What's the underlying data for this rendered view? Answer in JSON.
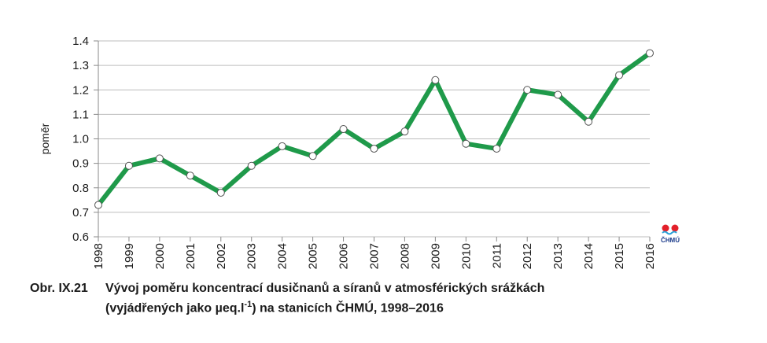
{
  "chart_data": {
    "type": "line",
    "x": [
      "1998",
      "1999",
      "2000",
      "2001",
      "2002",
      "2003",
      "2004",
      "2005",
      "2006",
      "2007",
      "2008",
      "2009",
      "2010",
      "2011",
      "2012",
      "2013",
      "2014",
      "2015",
      "2016"
    ],
    "series": [
      {
        "values": [
          0.73,
          0.89,
          0.92,
          0.85,
          0.78,
          0.89,
          0.97,
          0.93,
          1.04,
          0.96,
          1.03,
          1.24,
          0.98,
          0.96,
          1.2,
          1.18,
          1.07,
          1.26,
          1.35
        ]
      }
    ],
    "xlabel": "",
    "ylabel": "poměr",
    "ylim": [
      0.6,
      1.4
    ],
    "yticks": [
      "0.6",
      "0.7",
      "0.8",
      "0.9",
      "1.0",
      "1.1",
      "1.2",
      "1.3",
      "1.4"
    ],
    "grid": "horizontal",
    "line_color": "#1f9a4a",
    "marker_fill": "#ffffff",
    "marker_stroke": "#555555"
  },
  "logo": {
    "text": "ČHMÚ",
    "colors": [
      "#e3202a",
      "#2a9fd8"
    ]
  },
  "caption": {
    "number": "Obr. IX.21",
    "line1": "Vývoj poměru koncentrací dusičnanů a síranů v atmosférických srážkách",
    "line2_pre": "(vyjádřených jako µeq.l",
    "line2_sup": "-1",
    "line2_post": ") na stanicích ČHMÚ, 1998–2016"
  }
}
